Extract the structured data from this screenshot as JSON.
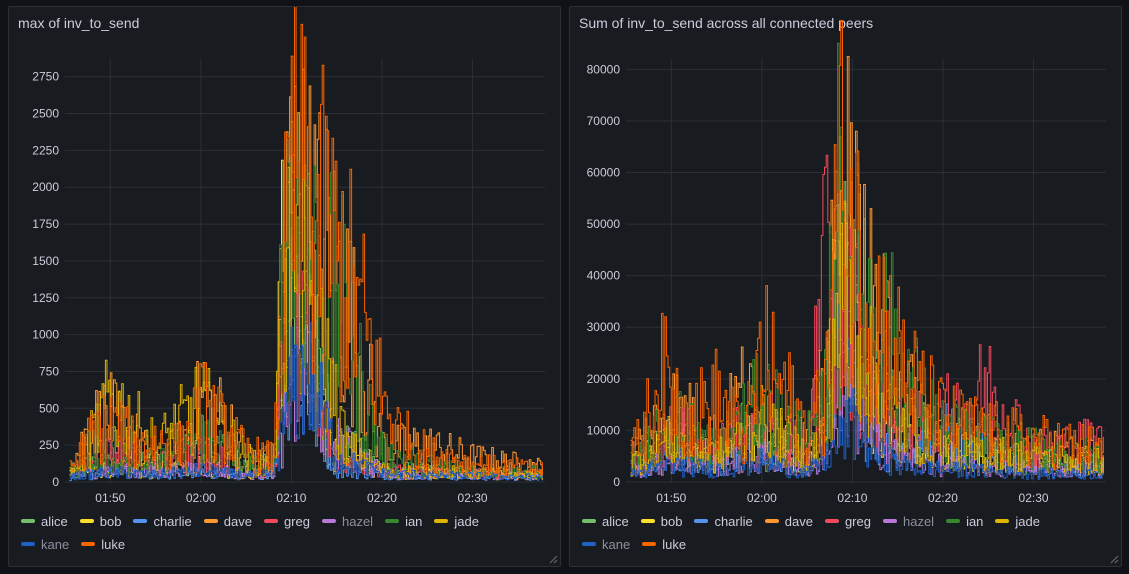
{
  "colors": {
    "alice": "#73bf69",
    "bob": "#fade2a",
    "charlie": "#5794f2",
    "dave": "#ff9830",
    "greg": "#f2495c",
    "hazel": "#b877d9",
    "ian": "#37872d",
    "jade": "#e0b400",
    "kane": "#1f60c4",
    "luke": "#fa6400"
  },
  "panels": [
    {
      "title": "max of inv_to_send",
      "legend": [
        {
          "name": "alice",
          "dim": false
        },
        {
          "name": "bob",
          "dim": false
        },
        {
          "name": "charlie",
          "dim": false
        },
        {
          "name": "dave",
          "dim": false
        },
        {
          "name": "greg",
          "dim": false
        },
        {
          "name": "hazel",
          "dim": true
        },
        {
          "name": "ian",
          "dim": false
        },
        {
          "name": "jade",
          "dim": false
        },
        {
          "name": "kane",
          "dim": true
        },
        {
          "name": "luke",
          "dim": false
        }
      ]
    },
    {
      "title": "Sum of inv_to_send across all connected peers",
      "legend": [
        {
          "name": "alice",
          "dim": false
        },
        {
          "name": "bob",
          "dim": false
        },
        {
          "name": "charlie",
          "dim": false
        },
        {
          "name": "dave",
          "dim": false
        },
        {
          "name": "greg",
          "dim": false
        },
        {
          "name": "hazel",
          "dim": true
        },
        {
          "name": "ian",
          "dim": false
        },
        {
          "name": "jade",
          "dim": false
        },
        {
          "name": "kane",
          "dim": true
        },
        {
          "name": "luke",
          "dim": false
        }
      ]
    }
  ],
  "chart_data": [
    {
      "type": "line",
      "title": "max of inv_to_send",
      "xlabel": "",
      "ylabel": "",
      "x_ticks": [
        "01:50",
        "02:00",
        "02:10",
        "02:20",
        "02:30"
      ],
      "x_range": [
        "01:45",
        "02:38"
      ],
      "y_ticks": [
        0,
        250,
        500,
        750,
        1000,
        1250,
        1500,
        1750,
        2000,
        2250,
        2500,
        2750
      ],
      "ylim": [
        0,
        2870
      ],
      "legend_position": "bottom",
      "series": [
        {
          "name": "alice",
          "x": [
            "01:46",
            "01:50",
            "01:55",
            "02:00",
            "02:05",
            "02:08",
            "02:10",
            "02:12",
            "02:15",
            "02:20",
            "02:25",
            "02:30",
            "02:38"
          ],
          "values": [
            80,
            300,
            120,
            350,
            120,
            150,
            1500,
            1600,
            350,
            120,
            90,
            70,
            60
          ]
        },
        {
          "name": "bob",
          "x": [
            "01:46",
            "01:50",
            "01:55",
            "02:00",
            "02:05",
            "02:08",
            "02:09",
            "02:10",
            "02:12",
            "02:14",
            "02:20",
            "02:30",
            "02:38"
          ],
          "values": [
            60,
            120,
            80,
            150,
            60,
            80,
            2000,
            1800,
            1100,
            300,
            80,
            60,
            50
          ]
        },
        {
          "name": "charlie",
          "x": [
            "01:46",
            "01:50",
            "01:55",
            "02:00",
            "02:05",
            "02:08",
            "02:09",
            "02:10",
            "02:11",
            "02:12",
            "02:15",
            "02:20",
            "02:30",
            "02:38"
          ],
          "values": [
            40,
            80,
            60,
            80,
            50,
            80,
            900,
            1100,
            1000,
            700,
            100,
            60,
            40,
            40
          ]
        },
        {
          "name": "dave",
          "x": [
            "01:46",
            "01:48",
            "01:50",
            "01:53",
            "01:55",
            "01:58",
            "02:00",
            "02:03",
            "02:05",
            "02:08",
            "02:09",
            "02:10",
            "02:12",
            "02:14",
            "02:16",
            "02:18",
            "02:20",
            "02:25",
            "02:30",
            "02:38"
          ],
          "values": [
            200,
            500,
            550,
            350,
            150,
            350,
            700,
            500,
            200,
            200,
            1700,
            2500,
            2100,
            1900,
            1500,
            900,
            300,
            300,
            200,
            120
          ]
        },
        {
          "name": "greg",
          "x": [
            "01:46",
            "01:50",
            "01:55",
            "02:00",
            "02:05",
            "02:08",
            "02:09",
            "02:10",
            "02:11",
            "02:13",
            "02:15",
            "02:20",
            "02:30",
            "02:38"
          ],
          "values": [
            100,
            250,
            150,
            250,
            100,
            100,
            1000,
            1300,
            1100,
            800,
            200,
            100,
            80,
            70
          ]
        },
        {
          "name": "hazel",
          "x": [
            "01:46",
            "01:50",
            "01:55",
            "02:00",
            "02:05",
            "02:08",
            "02:10",
            "02:12",
            "02:14",
            "02:20",
            "02:30",
            "02:38"
          ],
          "values": [
            60,
            100,
            80,
            120,
            60,
            80,
            700,
            800,
            400,
            80,
            60,
            50
          ]
        },
        {
          "name": "ian",
          "x": [
            "01:46",
            "01:50",
            "01:55",
            "02:00",
            "02:05",
            "02:08",
            "02:09",
            "02:10",
            "02:12",
            "02:14",
            "02:16",
            "02:18",
            "02:20",
            "02:25",
            "02:30",
            "02:38"
          ],
          "values": [
            100,
            200,
            150,
            400,
            150,
            120,
            1800,
            2250,
            1900,
            1600,
            1400,
            700,
            250,
            150,
            100,
            80
          ]
        },
        {
          "name": "jade",
          "x": [
            "01:46",
            "01:50",
            "01:55",
            "02:00",
            "02:05",
            "02:08",
            "02:09",
            "02:10",
            "02:12",
            "02:14",
            "02:16",
            "02:20",
            "02:30",
            "02:38"
          ],
          "values": [
            80,
            700,
            300,
            650,
            200,
            150,
            1500,
            2050,
            1500,
            900,
            300,
            100,
            80,
            60
          ]
        },
        {
          "name": "kane",
          "x": [
            "01:46",
            "01:50",
            "01:55",
            "02:00",
            "02:05",
            "02:08",
            "02:10",
            "02:12",
            "02:15",
            "02:20",
            "02:30",
            "02:38"
          ],
          "values": [
            50,
            80,
            60,
            100,
            50,
            80,
            800,
            900,
            200,
            70,
            50,
            40
          ]
        },
        {
          "name": "luke",
          "x": [
            "01:46",
            "01:48",
            "01:50",
            "01:53",
            "01:55",
            "01:58",
            "02:00",
            "02:03",
            "02:05",
            "02:08",
            "02:09",
            "02:10",
            "02:12",
            "02:14",
            "02:16",
            "02:18",
            "02:20",
            "02:22",
            "02:25",
            "02:30",
            "02:38"
          ],
          "values": [
            150,
            400,
            500,
            300,
            350,
            300,
            650,
            400,
            250,
            200,
            1500,
            2550,
            2200,
            2050,
            1700,
            1300,
            700,
            400,
            250,
            150,
            100
          ]
        }
      ]
    },
    {
      "type": "line",
      "title": "Sum of inv_to_send across all connected peers",
      "xlabel": "",
      "ylabel": "",
      "x_ticks": [
        "01:50",
        "02:00",
        "02:10",
        "02:20",
        "02:30"
      ],
      "x_range": [
        "01:45",
        "02:38"
      ],
      "y_ticks": [
        0,
        10000,
        20000,
        30000,
        40000,
        50000,
        60000,
        70000,
        80000
      ],
      "ylim": [
        0,
        82000
      ],
      "legend_position": "bottom",
      "series": [
        {
          "name": "alice",
          "x": [
            "01:46",
            "01:50",
            "01:55",
            "01:58",
            "02:00",
            "02:05",
            "02:07",
            "02:08",
            "02:10",
            "02:12",
            "02:15",
            "02:20",
            "02:30",
            "02:38"
          ],
          "values": [
            5000,
            12000,
            6000,
            12000,
            8000,
            5000,
            20000,
            40000,
            50000,
            35000,
            15000,
            8000,
            5000,
            4000
          ]
        },
        {
          "name": "bob",
          "x": [
            "01:46",
            "01:50",
            "01:55",
            "02:00",
            "02:05",
            "02:07",
            "02:08",
            "02:10",
            "02:12",
            "02:15",
            "02:20",
            "02:30",
            "02:38"
          ],
          "values": [
            4000,
            10000,
            5000,
            12000,
            5000,
            15000,
            45000,
            40000,
            20000,
            10000,
            6000,
            5000,
            4000
          ]
        },
        {
          "name": "charlie",
          "x": [
            "01:46",
            "01:50",
            "01:55",
            "02:00",
            "02:05",
            "02:07",
            "02:08",
            "02:09",
            "02:10",
            "02:12",
            "02:15",
            "02:20",
            "02:30",
            "02:38"
          ],
          "values": [
            3000,
            6000,
            4000,
            8000,
            3000,
            10000,
            20000,
            35000,
            25000,
            10000,
            5000,
            12000,
            4000,
            3000
          ]
        },
        {
          "name": "dave",
          "x": [
            "01:46",
            "01:50",
            "01:55",
            "01:58",
            "02:00",
            "02:05",
            "02:07",
            "02:08",
            "02:09",
            "02:10",
            "02:12",
            "02:14",
            "02:16",
            "02:20",
            "02:25",
            "02:30",
            "02:38"
          ],
          "values": [
            8000,
            18000,
            10000,
            22000,
            12000,
            10000,
            25000,
            50000,
            72000,
            55000,
            40000,
            30000,
            20000,
            12000,
            10000,
            8000,
            6000
          ]
        },
        {
          "name": "greg",
          "x": [
            "01:46",
            "01:50",
            "01:55",
            "02:00",
            "02:05",
            "02:07",
            "02:08",
            "02:10",
            "02:12",
            "02:15",
            "02:20",
            "02:25",
            "02:30",
            "02:38"
          ],
          "values": [
            6000,
            12000,
            8000,
            15000,
            8000,
            55000,
            30000,
            40000,
            20000,
            12000,
            15000,
            22000,
            8000,
            10000
          ]
        },
        {
          "name": "hazel",
          "x": [
            "01:46",
            "01:50",
            "01:55",
            "02:00",
            "02:05",
            "02:08",
            "02:10",
            "02:12",
            "02:15",
            "02:20",
            "02:30",
            "02:38"
          ],
          "values": [
            3000,
            5000,
            4000,
            6000,
            3000,
            10000,
            20000,
            10000,
            6000,
            4000,
            3000,
            3000
          ]
        },
        {
          "name": "ian",
          "x": [
            "01:46",
            "01:50",
            "01:55",
            "02:00",
            "02:05",
            "02:07",
            "02:08",
            "02:09",
            "02:10",
            "02:12",
            "02:14",
            "02:16",
            "02:20",
            "02:25",
            "02:30",
            "02:38"
          ],
          "values": [
            6000,
            15000,
            8000,
            20000,
            10000,
            20000,
            67000,
            60000,
            50000,
            40000,
            35000,
            25000,
            12000,
            10000,
            8000,
            6000
          ]
        },
        {
          "name": "jade",
          "x": [
            "01:46",
            "01:50",
            "01:55",
            "02:00",
            "02:05",
            "02:07",
            "02:08",
            "02:10",
            "02:12",
            "02:15",
            "02:20",
            "02:30",
            "02:38"
          ],
          "values": [
            5000,
            10000,
            6000,
            14000,
            6000,
            12000,
            40000,
            45000,
            25000,
            15000,
            8000,
            6000,
            5000
          ]
        },
        {
          "name": "kane",
          "x": [
            "01:46",
            "01:50",
            "01:55",
            "02:00",
            "02:05",
            "02:08",
            "02:10",
            "02:12",
            "02:15",
            "02:20",
            "02:30",
            "02:38"
          ],
          "values": [
            2000,
            4000,
            3000,
            5000,
            2000,
            8000,
            15000,
            8000,
            4000,
            3000,
            2000,
            2000
          ]
        },
        {
          "name": "luke",
          "x": [
            "01:46",
            "01:49",
            "01:52",
            "01:55",
            "01:58",
            "02:00",
            "02:05",
            "02:07",
            "02:08",
            "02:09",
            "02:10",
            "02:12",
            "02:14",
            "02:16",
            "02:20",
            "02:25",
            "02:30",
            "02:38"
          ],
          "values": [
            8000,
            25000,
            15000,
            20000,
            10000,
            30000,
            12000,
            20000,
            60000,
            73000,
            55000,
            45000,
            35000,
            25000,
            15000,
            12000,
            10000,
            8000
          ]
        }
      ]
    }
  ]
}
